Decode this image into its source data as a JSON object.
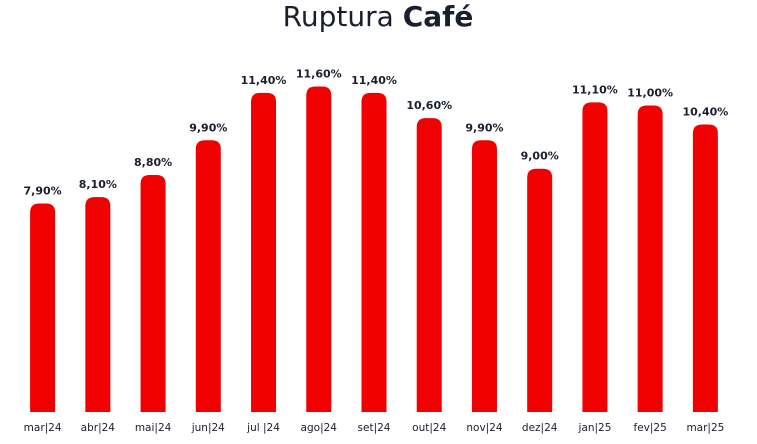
{
  "chart_data": {
    "type": "bar",
    "title": "Ruptura",
    "title_bold": "Café",
    "categories": [
      "mar|24",
      "abr|24",
      "mai|24",
      "jun|24",
      "jul |24",
      "ago|24",
      "set|24",
      "out|24",
      "nov|24",
      "dez|24",
      "jan|25",
      "fev|25",
      "mar|25"
    ],
    "values": [
      7.9,
      8.1,
      8.8,
      9.9,
      11.4,
      11.6,
      11.4,
      10.6,
      9.9,
      9.0,
      11.1,
      11.0,
      10.4
    ],
    "value_labels": [
      "7,90%",
      "8,10%",
      "8,80%",
      "9,90%",
      "11,40%",
      "11,60%",
      "11,40%",
      "10,60%",
      "9,90%",
      "9,00%",
      "11,10%",
      "11,00%",
      "10,40%"
    ],
    "color": "#f00000",
    "ylim": [
      1.3,
      12.2
    ]
  }
}
